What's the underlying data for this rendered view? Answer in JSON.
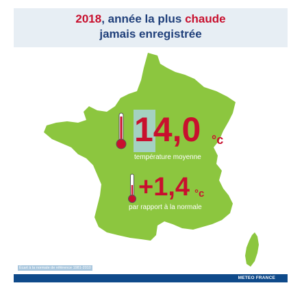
{
  "title": {
    "line1_year": "2018",
    "line1_mid": ", année la plus ",
    "line1_hot": "chaude",
    "line2": "jamais enregistrée"
  },
  "stats": {
    "mean_temp": {
      "value": "14,0",
      "unit": "°c",
      "caption": "température moyenne"
    },
    "anomaly": {
      "value": "+1,4",
      "unit": "°c",
      "caption": "par rapport à la normale"
    }
  },
  "footnote": "Écart à la normale de référence 1981-2010",
  "footer": {
    "brand": "METEO FRANCE"
  },
  "colors": {
    "map_green": "#8cc63f",
    "value_red": "#c8102e",
    "title_blue": "#1f3f7a",
    "footer_blue": "#0f4a8a",
    "title_band": "#e7eef4"
  },
  "icons": {
    "thermometer_hot": "thermometer-icon",
    "thermometer_mild": "thermometer-icon"
  }
}
